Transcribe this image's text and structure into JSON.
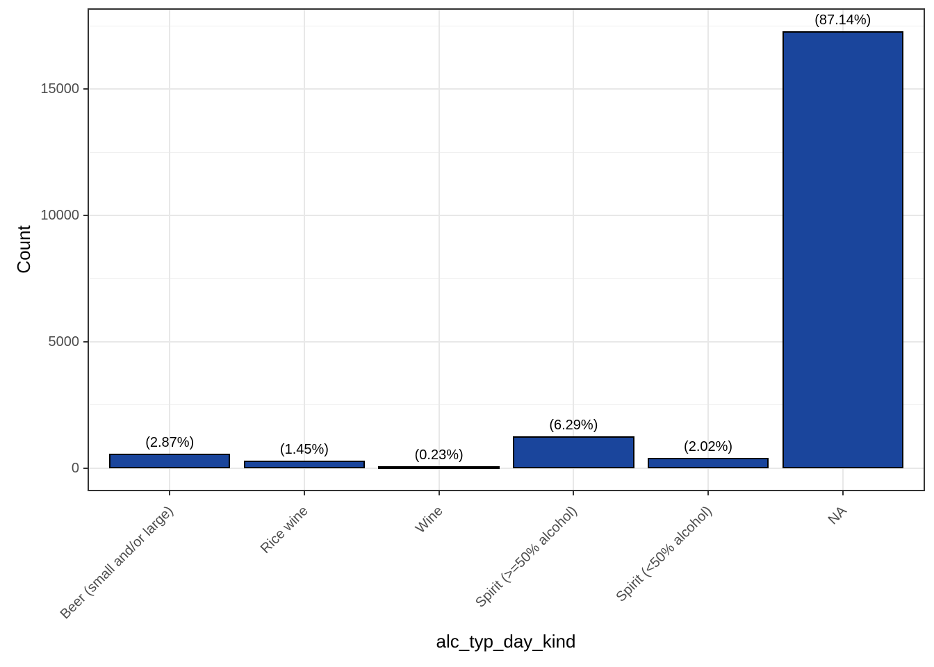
{
  "chart_data": {
    "type": "bar",
    "title": "",
    "xlabel": "alc_typ_day_kind",
    "ylabel": "Count",
    "categories": [
      "Beer (small and/or large)",
      "Rice wine",
      "Wine",
      "Spirit (>=50% alcohol)",
      "Spirit (<50% alcohol)",
      "NA"
    ],
    "values": [
      569,
      288,
      46,
      1247,
      401,
      17280
    ],
    "bar_labels": [
      "(2.87%)",
      "(1.45%)",
      "(0.23%)",
      "(6.29%)",
      "(2.02%)",
      "(87.14%)"
    ],
    "percentages": [
      2.87,
      1.45,
      0.23,
      6.29,
      2.02,
      87.14
    ],
    "y_axis": {
      "tick_values": [
        0,
        5000,
        10000,
        15000
      ],
      "tick_labels": [
        "0",
        "5000",
        "10000",
        "15000"
      ],
      "minor_gridlines": [
        2500,
        7500,
        12500,
        17500
      ],
      "range_shown": [
        -864,
        18144
      ]
    },
    "grid": true,
    "legend_position": "none",
    "orientation": "vertical",
    "bar_width_fraction": 0.9,
    "colors": {
      "bar_fill": "#1a459c",
      "bar_border": "#000000",
      "panel_border": "#333333",
      "grid_major": "#e8e8e8",
      "grid_minor": "#f0f0f0",
      "tick_text": "#4d4d4d",
      "axis_title_text": "#000000",
      "bar_label_text": "#000000",
      "background": "#ffffff"
    }
  }
}
